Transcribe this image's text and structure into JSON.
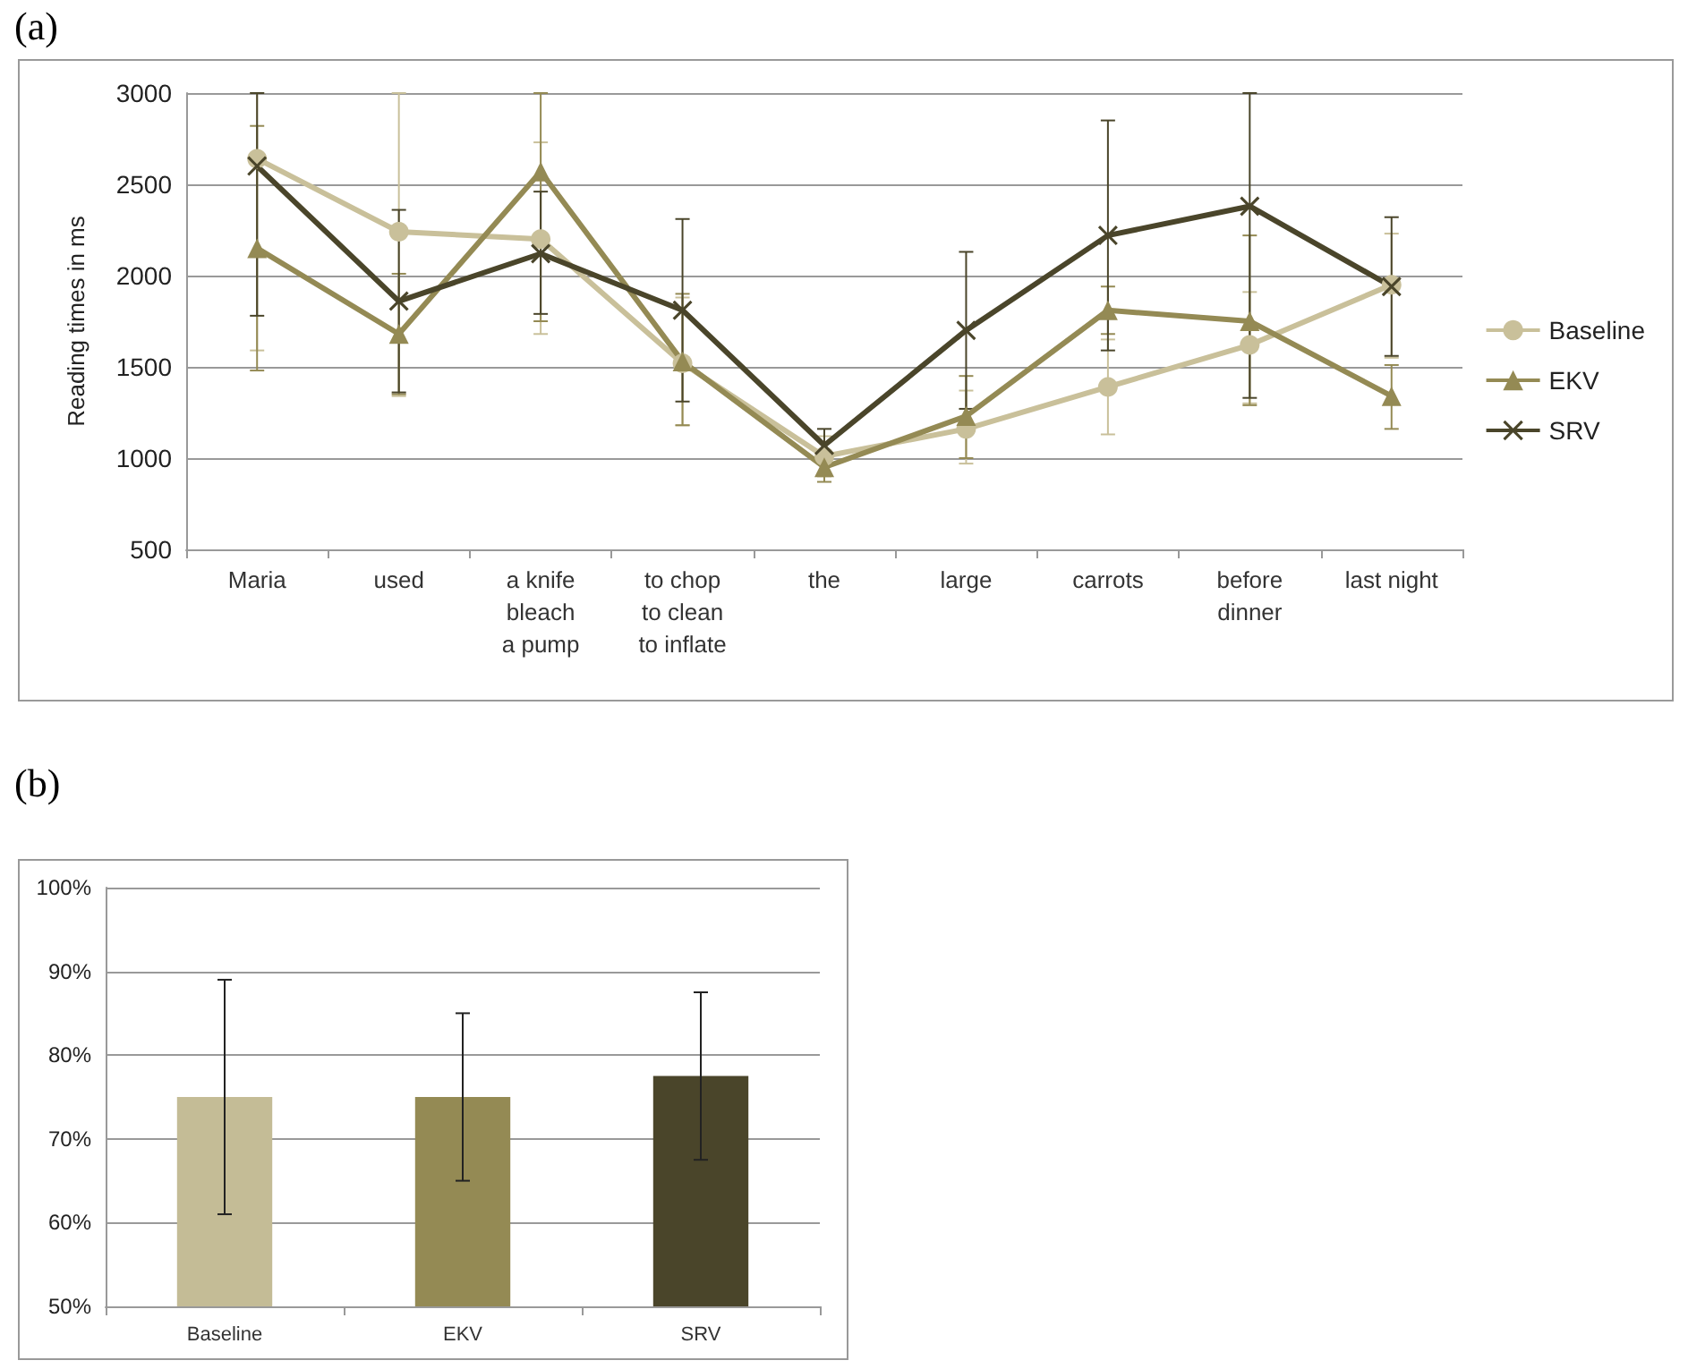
{
  "chart_data": [
    {
      "type": "line",
      "title": "(a)",
      "ylabel": "Reading times in ms",
      "categories": [
        "Maria",
        "used",
        "a knife\nbleach\na pump",
        "to chop\nto clean\nto inflate",
        "the",
        "large",
        "carrots",
        "before\ndinner",
        "last night"
      ],
      "series": [
        {
          "name": "Baseline",
          "color": "#c9c09a",
          "marker": "circle",
          "values": [
            2640,
            2240,
            2200,
            1520,
            1010,
            1160,
            1390,
            1620,
            1950
          ],
          "errors": [
            [
              1590,
              3000
            ],
            [
              1340,
              3000
            ],
            [
              1680,
              2730
            ],
            [
              1180,
              1880
            ],
            [
              900,
              1120
            ],
            [
              970,
              1370
            ],
            [
              1130,
              1650
            ],
            [
              1300,
              1910
            ],
            [
              1550,
              2230
            ]
          ]
        },
        {
          "name": "EKV",
          "color": "#948a54",
          "marker": "triangle",
          "values": [
            2150,
            1680,
            2570,
            1530,
            950,
            1230,
            1810,
            1750,
            1340
          ],
          "errors": [
            [
              1480,
              2820
            ],
            [
              1350,
              2010
            ],
            [
              1750,
              3000
            ],
            [
              1180,
              1900
            ],
            [
              870,
              1030
            ],
            [
              1000,
              1450
            ],
            [
              1680,
              1940
            ],
            [
              1290,
              2220
            ],
            [
              1160,
              1510
            ]
          ]
        },
        {
          "name": "SRV",
          "color": "#4a452a",
          "marker": "cross",
          "values": [
            2600,
            1860,
            2120,
            1810,
            1070,
            1700,
            2220,
            2380,
            1940
          ],
          "errors": [
            [
              1780,
              3000
            ],
            [
              1360,
              2360
            ],
            [
              1790,
              2460
            ],
            [
              1310,
              2310
            ],
            [
              980,
              1160
            ],
            [
              1270,
              2130
            ],
            [
              1590,
              2850
            ],
            [
              1330,
              3000
            ],
            [
              1560,
              2320
            ]
          ]
        }
      ],
      "ylim": [
        500,
        3000
      ],
      "yticks": [
        500,
        1000,
        1500,
        2000,
        2500,
        3000
      ],
      "grid": "y",
      "legend": "right",
      "line_style": "solid"
    },
    {
      "type": "bar",
      "title": "(b)",
      "categories": [
        "Baseline",
        "EKV",
        "SRV"
      ],
      "values": [
        75,
        75,
        77.5
      ],
      "colors": [
        "#c4bc96",
        "#948a54",
        "#4a452a"
      ],
      "errors": [
        [
          61,
          89
        ],
        [
          65,
          85
        ],
        [
          67.5,
          87.5
        ]
      ],
      "ylim": [
        50,
        100
      ],
      "yticks": [
        {
          "value": 50,
          "label": "50%"
        },
        {
          "value": 60,
          "label": "60%"
        },
        {
          "value": 70,
          "label": "70%"
        },
        {
          "value": 80,
          "label": "80%"
        },
        {
          "value": 90,
          "label": "90%"
        },
        {
          "value": 100,
          "label": "100%"
        }
      ],
      "grid": "y",
      "legend": false
    }
  ]
}
